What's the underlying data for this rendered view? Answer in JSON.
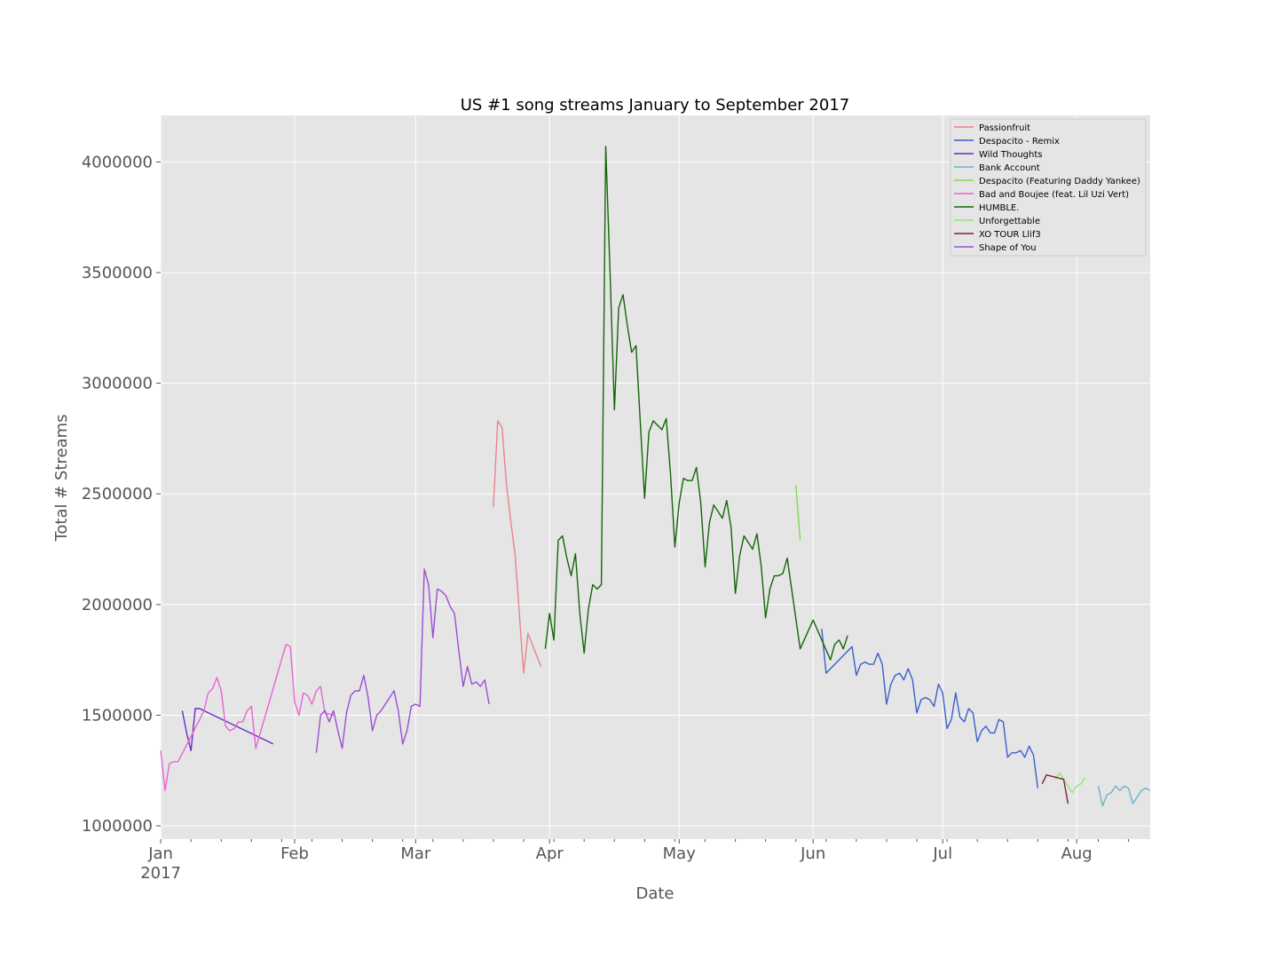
{
  "chart_data": {
    "type": "line",
    "title": "US #1 song streams January to September 2017",
    "xlabel": "Date",
    "ylabel": "Total # Streams",
    "xlim": [
      "2017-01-01",
      "2017-08-18"
    ],
    "ylim": [
      940000,
      4210000
    ],
    "yticks": [
      1000000,
      1500000,
      2000000,
      2500000,
      3000000,
      3500000,
      4000000
    ],
    "ytick_labels": [
      "1000000",
      "1500000",
      "2000000",
      "2500000",
      "3000000",
      "3500000",
      "4000000"
    ],
    "xticks": [
      "2017-01-01",
      "2017-02-01",
      "2017-03-01",
      "2017-04-01",
      "2017-05-01",
      "2017-06-01",
      "2017-07-01",
      "2017-08-01"
    ],
    "xtick_labels": [
      "Jan",
      "Feb",
      "Mar",
      "Apr",
      "May",
      "Jun",
      "Jul",
      "Aug"
    ],
    "xtick_sublabel": "2017",
    "grid": true,
    "legend_position": "top-right",
    "background": "#e5e5e5",
    "series": [
      {
        "name": "Passionfruit",
        "color": "#e8848c",
        "points": [
          [
            "2017-03-19",
            2440000
          ],
          [
            "2017-03-20",
            2830000
          ],
          [
            "2017-03-21",
            2800000
          ],
          [
            "2017-03-22",
            2550000
          ],
          [
            "2017-03-23",
            2380000
          ],
          [
            "2017-03-24",
            2230000
          ],
          [
            "2017-03-26",
            1690000
          ],
          [
            "2017-03-27",
            1870000
          ],
          [
            "2017-03-28",
            1820000
          ],
          [
            "2017-03-29",
            1770000
          ],
          [
            "2017-03-30",
            1720000
          ]
        ]
      },
      {
        "name": "Despacito - Remix",
        "color": "#3a5fcd",
        "points": [
          [
            "2017-06-03",
            1890000
          ],
          [
            "2017-06-04",
            1690000
          ],
          [
            "2017-06-10",
            1810000
          ],
          [
            "2017-06-11",
            1680000
          ],
          [
            "2017-06-12",
            1730000
          ],
          [
            "2017-06-13",
            1740000
          ],
          [
            "2017-06-14",
            1730000
          ],
          [
            "2017-06-15",
            1730000
          ],
          [
            "2017-06-16",
            1780000
          ],
          [
            "2017-06-17",
            1730000
          ],
          [
            "2017-06-18",
            1550000
          ],
          [
            "2017-06-19",
            1640000
          ],
          [
            "2017-06-20",
            1680000
          ],
          [
            "2017-06-21",
            1690000
          ],
          [
            "2017-06-22",
            1660000
          ],
          [
            "2017-06-23",
            1710000
          ],
          [
            "2017-06-24",
            1660000
          ],
          [
            "2017-06-25",
            1510000
          ],
          [
            "2017-06-26",
            1570000
          ],
          [
            "2017-06-27",
            1580000
          ],
          [
            "2017-06-28",
            1570000
          ],
          [
            "2017-06-29",
            1540000
          ],
          [
            "2017-06-30",
            1640000
          ],
          [
            "2017-07-01",
            1600000
          ],
          [
            "2017-07-02",
            1440000
          ],
          [
            "2017-07-03",
            1480000
          ],
          [
            "2017-07-04",
            1600000
          ],
          [
            "2017-07-05",
            1490000
          ],
          [
            "2017-07-06",
            1470000
          ],
          [
            "2017-07-07",
            1530000
          ],
          [
            "2017-07-08",
            1510000
          ],
          [
            "2017-07-09",
            1380000
          ],
          [
            "2017-07-10",
            1430000
          ],
          [
            "2017-07-11",
            1450000
          ],
          [
            "2017-07-12",
            1420000
          ],
          [
            "2017-07-13",
            1420000
          ],
          [
            "2017-07-14",
            1480000
          ],
          [
            "2017-07-15",
            1470000
          ],
          [
            "2017-07-16",
            1310000
          ],
          [
            "2017-07-17",
            1330000
          ],
          [
            "2017-07-18",
            1330000
          ],
          [
            "2017-07-19",
            1340000
          ],
          [
            "2017-07-20",
            1310000
          ],
          [
            "2017-07-21",
            1360000
          ],
          [
            "2017-07-22",
            1320000
          ],
          [
            "2017-07-23",
            1170000
          ]
        ]
      },
      {
        "name": "Wild Thoughts",
        "color": "#6a2bc9",
        "points": [
          [
            "2017-01-06",
            1520000
          ],
          [
            "2017-01-07",
            1420000
          ],
          [
            "2017-01-08",
            1340000
          ],
          [
            "2017-01-09",
            1530000
          ],
          [
            "2017-01-10",
            1530000
          ],
          [
            "2017-01-27",
            1370000
          ]
        ]
      },
      {
        "name": "Bank Account",
        "color": "#6bb3c4",
        "points": [
          [
            "2017-08-06",
            1180000
          ],
          [
            "2017-08-07",
            1090000
          ],
          [
            "2017-08-08",
            1140000
          ],
          [
            "2017-08-09",
            1150000
          ],
          [
            "2017-08-10",
            1180000
          ],
          [
            "2017-08-11",
            1160000
          ],
          [
            "2017-08-12",
            1180000
          ],
          [
            "2017-08-13",
            1170000
          ],
          [
            "2017-08-14",
            1100000
          ],
          [
            "2017-08-15",
            1130000
          ],
          [
            "2017-08-16",
            1160000
          ],
          [
            "2017-08-17",
            1170000
          ],
          [
            "2017-08-18",
            1160000
          ]
        ]
      },
      {
        "name": "Despacito (Featuring Daddy Yankee)",
        "color": "#84d84a",
        "points": [
          [
            "2017-05-28",
            2540000
          ],
          [
            "2017-05-29",
            2290000
          ]
        ]
      },
      {
        "name": "Bad and Boujee (feat. Lil Uzi Vert)",
        "color": "#e864d4",
        "points": [
          [
            "2017-01-01",
            1340000
          ],
          [
            "2017-01-02",
            1160000
          ],
          [
            "2017-01-03",
            1280000
          ],
          [
            "2017-01-04",
            1290000
          ],
          [
            "2017-01-05",
            1290000
          ],
          [
            "2017-01-10",
            1480000
          ],
          [
            "2017-01-11",
            1520000
          ],
          [
            "2017-01-12",
            1600000
          ],
          [
            "2017-01-13",
            1620000
          ],
          [
            "2017-01-14",
            1670000
          ],
          [
            "2017-01-15",
            1610000
          ],
          [
            "2017-01-16",
            1450000
          ],
          [
            "2017-01-17",
            1430000
          ],
          [
            "2017-01-18",
            1440000
          ],
          [
            "2017-01-19",
            1470000
          ],
          [
            "2017-01-20",
            1470000
          ],
          [
            "2017-01-21",
            1520000
          ],
          [
            "2017-01-22",
            1540000
          ],
          [
            "2017-01-23",
            1350000
          ],
          [
            "2017-01-30",
            1820000
          ],
          [
            "2017-01-31",
            1810000
          ],
          [
            "2017-02-01",
            1560000
          ],
          [
            "2017-02-02",
            1500000
          ],
          [
            "2017-02-03",
            1600000
          ],
          [
            "2017-02-04",
            1590000
          ],
          [
            "2017-02-05",
            1550000
          ],
          [
            "2017-02-06",
            1610000
          ],
          [
            "2017-02-07",
            1630000
          ],
          [
            "2017-02-08",
            1510000
          ],
          [
            "2017-02-10",
            1500000
          ]
        ]
      },
      {
        "name": "HUMBLE.",
        "color": "#146608",
        "points": [
          [
            "2017-03-31",
            1800000
          ],
          [
            "2017-04-01",
            1960000
          ],
          [
            "2017-04-02",
            1840000
          ],
          [
            "2017-04-03",
            2290000
          ],
          [
            "2017-04-04",
            2310000
          ],
          [
            "2017-04-05",
            2210000
          ],
          [
            "2017-04-06",
            2130000
          ],
          [
            "2017-04-07",
            2230000
          ],
          [
            "2017-04-08",
            1960000
          ],
          [
            "2017-04-09",
            1780000
          ],
          [
            "2017-04-10",
            1980000
          ],
          [
            "2017-04-11",
            2090000
          ],
          [
            "2017-04-12",
            2070000
          ],
          [
            "2017-04-13",
            2090000
          ],
          [
            "2017-04-14",
            4070000
          ],
          [
            "2017-04-15",
            3500000
          ],
          [
            "2017-04-16",
            2880000
          ],
          [
            "2017-04-17",
            3340000
          ],
          [
            "2017-04-18",
            3400000
          ],
          [
            "2017-04-19",
            3260000
          ],
          [
            "2017-04-20",
            3140000
          ],
          [
            "2017-04-21",
            3170000
          ],
          [
            "2017-04-22",
            2820000
          ],
          [
            "2017-04-23",
            2480000
          ],
          [
            "2017-04-24",
            2780000
          ],
          [
            "2017-04-25",
            2830000
          ],
          [
            "2017-04-26",
            2810000
          ],
          [
            "2017-04-27",
            2790000
          ],
          [
            "2017-04-28",
            2840000
          ],
          [
            "2017-04-29",
            2590000
          ],
          [
            "2017-04-30",
            2260000
          ],
          [
            "2017-05-01",
            2460000
          ],
          [
            "2017-05-02",
            2570000
          ],
          [
            "2017-05-03",
            2560000
          ],
          [
            "2017-05-04",
            2560000
          ],
          [
            "2017-05-05",
            2620000
          ],
          [
            "2017-05-06",
            2460000
          ],
          [
            "2017-05-07",
            2170000
          ],
          [
            "2017-05-08",
            2370000
          ],
          [
            "2017-05-09",
            2450000
          ],
          [
            "2017-05-10",
            2420000
          ],
          [
            "2017-05-11",
            2390000
          ],
          [
            "2017-05-12",
            2470000
          ],
          [
            "2017-05-13",
            2350000
          ],
          [
            "2017-05-14",
            2050000
          ],
          [
            "2017-05-15",
            2220000
          ],
          [
            "2017-05-16",
            2310000
          ],
          [
            "2017-05-17",
            2280000
          ],
          [
            "2017-05-18",
            2250000
          ],
          [
            "2017-05-19",
            2320000
          ],
          [
            "2017-05-20",
            2170000
          ],
          [
            "2017-05-21",
            1940000
          ],
          [
            "2017-05-22",
            2070000
          ],
          [
            "2017-05-23",
            2130000
          ],
          [
            "2017-05-24",
            2130000
          ],
          [
            "2017-05-25",
            2140000
          ],
          [
            "2017-05-26",
            2210000
          ],
          [
            "2017-05-29",
            1800000
          ],
          [
            "2017-06-01",
            1930000
          ],
          [
            "2017-06-05",
            1750000
          ],
          [
            "2017-06-06",
            1820000
          ],
          [
            "2017-06-07",
            1840000
          ],
          [
            "2017-06-08",
            1800000
          ],
          [
            "2017-06-09",
            1860000
          ]
        ]
      },
      {
        "name": "Unforgettable",
        "color": "#90e87c",
        "points": [
          [
            "2017-07-27",
            1210000
          ],
          [
            "2017-07-28",
            1240000
          ],
          [
            "2017-07-29",
            1210000
          ],
          [
            "2017-07-30",
            1180000
          ],
          [
            "2017-07-31",
            1150000
          ],
          [
            "2017-08-01",
            1180000
          ],
          [
            "2017-08-02",
            1190000
          ],
          [
            "2017-08-03",
            1220000
          ]
        ]
      },
      {
        "name": "XO TOUR Llif3",
        "color": "#7a2535",
        "points": [
          [
            "2017-07-24",
            1190000
          ],
          [
            "2017-07-25",
            1230000
          ],
          [
            "2017-07-29",
            1210000
          ],
          [
            "2017-07-30",
            1100000
          ]
        ]
      },
      {
        "name": "Shape of You",
        "color": "#9c4ed4",
        "points": [
          [
            "2017-02-06",
            1330000
          ],
          [
            "2017-02-07",
            1500000
          ],
          [
            "2017-02-08",
            1520000
          ],
          [
            "2017-02-09",
            1470000
          ],
          [
            "2017-02-10",
            1520000
          ],
          [
            "2017-02-11",
            1430000
          ],
          [
            "2017-02-12",
            1350000
          ],
          [
            "2017-02-13",
            1510000
          ],
          [
            "2017-02-14",
            1590000
          ],
          [
            "2017-02-15",
            1610000
          ],
          [
            "2017-02-16",
            1610000
          ],
          [
            "2017-02-17",
            1680000
          ],
          [
            "2017-02-18",
            1580000
          ],
          [
            "2017-02-19",
            1430000
          ],
          [
            "2017-02-20",
            1500000
          ],
          [
            "2017-02-21",
            1520000
          ],
          [
            "2017-02-22",
            1550000
          ],
          [
            "2017-02-23",
            1580000
          ],
          [
            "2017-02-24",
            1610000
          ],
          [
            "2017-02-25",
            1520000
          ],
          [
            "2017-02-26",
            1370000
          ],
          [
            "2017-02-27",
            1430000
          ],
          [
            "2017-02-28",
            1540000
          ],
          [
            "2017-03-01",
            1550000
          ],
          [
            "2017-03-02",
            1540000
          ],
          [
            "2017-03-03",
            2160000
          ],
          [
            "2017-03-04",
            2090000
          ],
          [
            "2017-03-05",
            1850000
          ],
          [
            "2017-03-06",
            2070000
          ],
          [
            "2017-03-07",
            2060000
          ],
          [
            "2017-03-08",
            2040000
          ],
          [
            "2017-03-09",
            1990000
          ],
          [
            "2017-03-10",
            1960000
          ],
          [
            "2017-03-11",
            1790000
          ],
          [
            "2017-03-12",
            1630000
          ],
          [
            "2017-03-13",
            1720000
          ],
          [
            "2017-03-14",
            1640000
          ],
          [
            "2017-03-15",
            1650000
          ],
          [
            "2017-03-16",
            1630000
          ],
          [
            "2017-03-17",
            1660000
          ],
          [
            "2017-03-18",
            1550000
          ]
        ]
      }
    ]
  }
}
